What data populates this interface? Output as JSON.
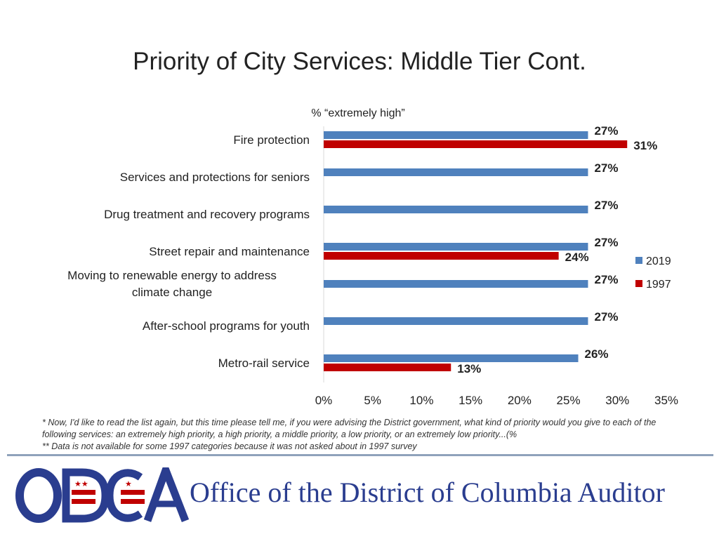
{
  "title": "Priority of City Services: Middle Tier Cont.",
  "chart_data": {
    "type": "bar",
    "orientation": "horizontal",
    "subtitle": "% “extremely high”",
    "categories": [
      "Fire protection",
      "Services and protections for seniors",
      "Drug treatment and recovery programs",
      "Street repair and maintenance",
      "Moving to renewable energy to address climate change",
      "After-school programs for youth",
      "Metro-rail service"
    ],
    "series": [
      {
        "name": "2019",
        "color": "#4f81bd",
        "values": [
          27,
          27,
          27,
          27,
          27,
          27,
          26
        ]
      },
      {
        "name": "1997",
        "color": "#c00000",
        "values": [
          31,
          null,
          null,
          24,
          null,
          null,
          13
        ]
      }
    ],
    "value_suffix": "%",
    "xlim": [
      0,
      35
    ],
    "xticks": [
      "0%",
      "5%",
      "10%",
      "15%",
      "20%",
      "25%",
      "30%",
      "35%"
    ],
    "legend_position": "right"
  },
  "footnotes": [
    "* Now, I'd like to read the list again, but this time please tell me, if you were advising the District government, what kind of priority would you give to each of the following services: an extremely high priority, a high priority, a middle priority, a low priority, or an extremely low priority...(%",
    "** Data is not available for some 1997 categories because it was not asked about in 1997 survey"
  ],
  "footer": {
    "logo_text": "ODCA",
    "org_name": "Office of the District of Columbia Auditor"
  }
}
